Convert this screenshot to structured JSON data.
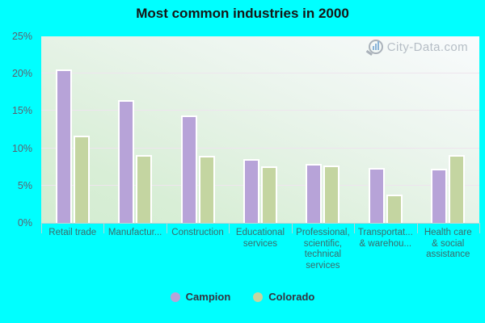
{
  "title": "Most common industries in 2000",
  "watermark": "City-Data.com",
  "colors": {
    "background": "#00ffff",
    "campion": "#b7a3d8",
    "colorado": "#c4d5a1",
    "bar_border": "#ffffff",
    "gridline": "#eee5ee",
    "title_color": "#161616",
    "ytick_color": "#5d6070",
    "xlabel_color": "#3c6a6a",
    "legend_text": "#33333f",
    "watermark_color": "#b5bdc5"
  },
  "chart_data": {
    "type": "bar",
    "title": "Most common industries in 2000",
    "categories": [
      "Retail trade",
      "Manufactur...",
      "Construction",
      "Educational services",
      "Professional, scientific, technical services",
      "Transportat... & warehou...",
      "Health care & social assistance"
    ],
    "category_label_lines": [
      [
        "Retail trade"
      ],
      [
        "Manufactur..."
      ],
      [
        "Construction"
      ],
      [
        "Educational",
        "services"
      ],
      [
        "Professional,",
        "scientific,",
        "technical",
        "services"
      ],
      [
        "Transportat...",
        "& warehou..."
      ],
      [
        "Health care",
        "& social",
        "assistance"
      ]
    ],
    "series": [
      {
        "name": "Campion",
        "color_key": "campion",
        "values": [
          20.6,
          16.5,
          14.4,
          8.5,
          7.9,
          7.4,
          7.3
        ]
      },
      {
        "name": "Colorado",
        "color_key": "colorado",
        "values": [
          11.7,
          9.1,
          9.0,
          7.6,
          7.7,
          3.8,
          9.1
        ]
      }
    ],
    "xlabel": "",
    "ylabel": "",
    "ylim": [
      0,
      25
    ],
    "ytick_step": 5,
    "ytick_labels": [
      "0%",
      "5%",
      "10%",
      "15%",
      "20%",
      "25%"
    ],
    "grid": true,
    "legend_position": "bottom"
  }
}
